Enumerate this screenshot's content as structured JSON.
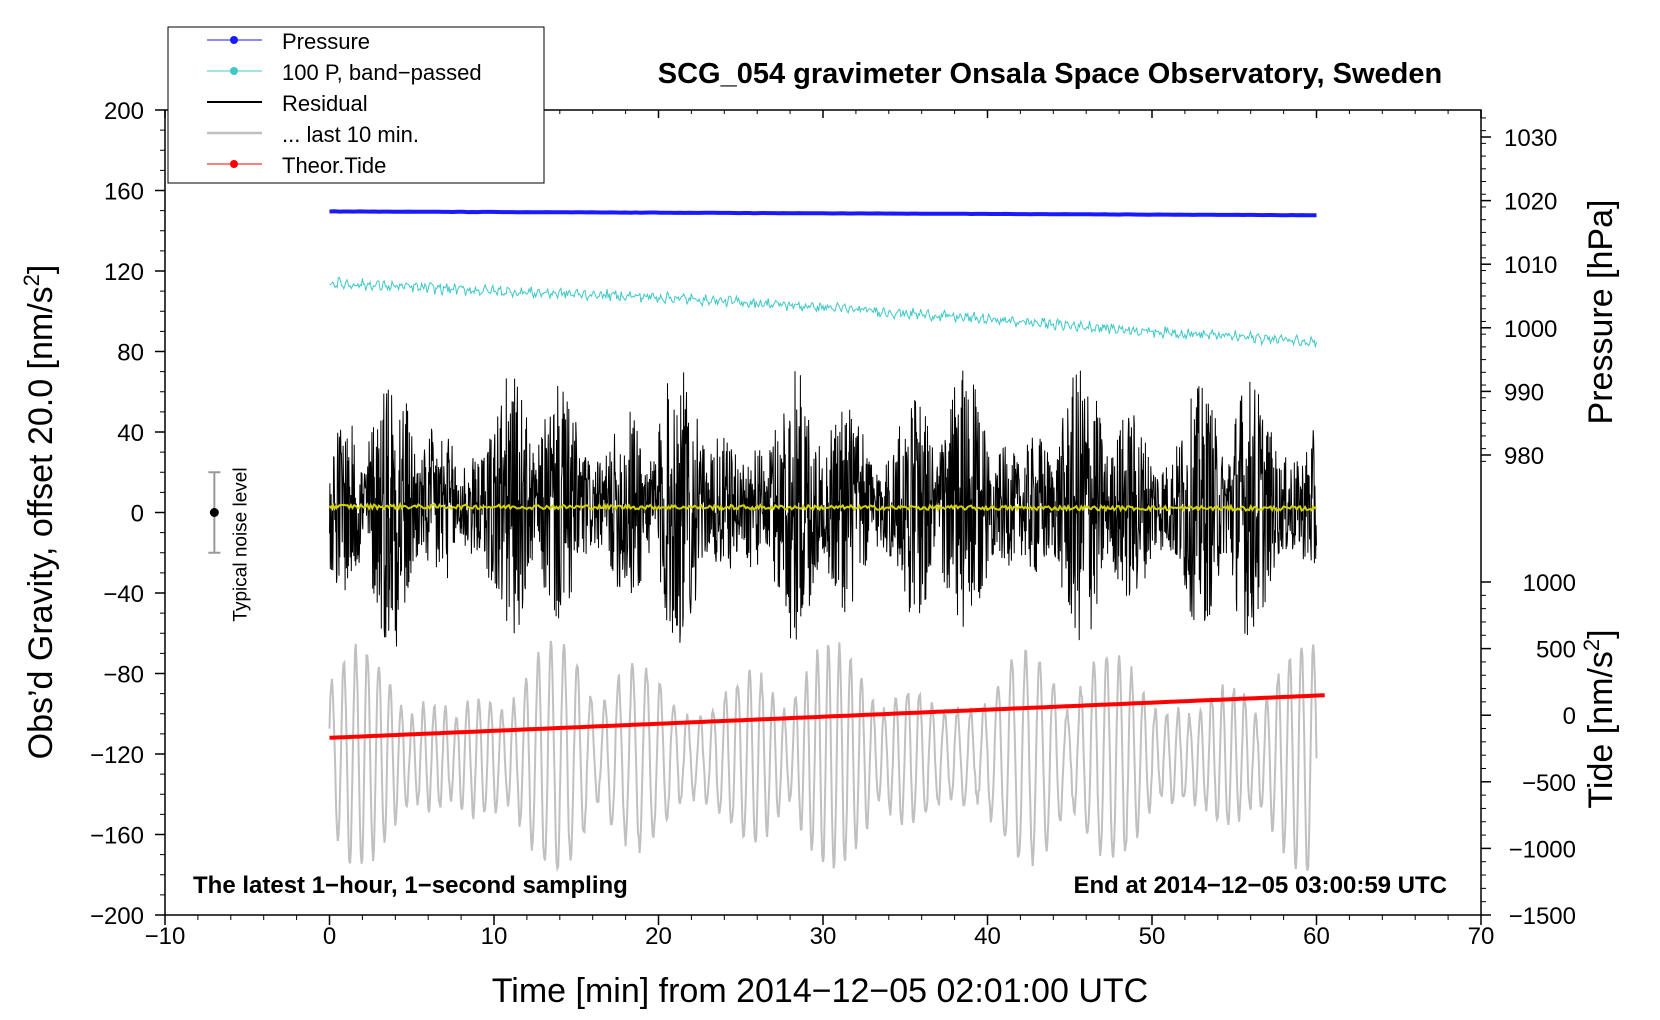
{
  "chart_data": {
    "type": "line",
    "title": "SCG_054 gravimeter Onsala Space Observatory, Sweden",
    "xlabel": "Time [min] from 2014−12−05 02:01:00 UTC",
    "ylabel": "Obs’d Gravity, offset 20.0 [nm/s²]",
    "ylabel_main": "Obs’d Gravity, offset 20.0 [nm/s",
    "ylabel_exp": "2",
    "ylabel_end": "]",
    "xlim": [
      -10,
      70
    ],
    "ylim": [
      -200,
      200
    ],
    "x_ticks": [
      "−10",
      "0",
      "10",
      "20",
      "30",
      "40",
      "50",
      "60",
      "70"
    ],
    "y_ticks": [
      "200",
      "160",
      "120",
      "80",
      "40",
      "0",
      "−40",
      "−80",
      "−120",
      "−160",
      "−200"
    ],
    "pressure_axis": {
      "label": "Pressure [hPa]",
      "range": [
        960,
        1035
      ],
      "ticks": [
        "1030",
        "1020",
        "1010",
        "1000",
        "990",
        "980"
      ]
    },
    "tide_axis": {
      "label": "Tide [nm/s²]",
      "label_main": "Tide [nm/s",
      "label_exp": "2",
      "label_end": "]",
      "range": [
        -1500,
        1000
      ],
      "ticks": [
        "1000",
        "500",
        "0",
        "−500",
        "−1000",
        "−1500"
      ]
    },
    "legend": {
      "location": "top-left",
      "entries": [
        "Pressure",
        "100 P, band−passed",
        "Residual",
        "... last 10 min.",
        "Theor.Tide"
      ]
    },
    "series": [
      {
        "name": "Pressure",
        "color": "#1a1aff",
        "axis": "pressure",
        "x": [
          0,
          60
        ],
        "values": [
          1018.3,
          1017.7
        ]
      },
      {
        "name": "100 P, band−passed",
        "color": "#40c8c8",
        "axis": "gravity",
        "x": [
          0,
          10,
          20,
          30,
          40,
          50,
          60
        ],
        "values": [
          114,
          110,
          107,
          102,
          96,
          90,
          85
        ]
      },
      {
        "name": "Residual",
        "color": "#000000",
        "axis": "gravity",
        "x": [
          0,
          60
        ],
        "values_range": [
          -70,
          80
        ]
      },
      {
        "name": "Residual (smoothed)",
        "color": "#d2d200",
        "axis": "gravity",
        "x": [
          0,
          60
        ],
        "values": [
          3,
          2
        ]
      },
      {
        "name": "... last 10 min.",
        "color": "#c0c0c0",
        "axis": "gravity",
        "x": [
          0,
          60
        ],
        "values_range": [
          -182,
          -61
        ]
      },
      {
        "name": "Theor.Tide",
        "color": "#ff0000",
        "axis": "tide",
        "x": [
          0,
          60.5
        ],
        "values": [
          -170,
          150
        ]
      }
    ],
    "noise_indicator": {
      "label": "Typical noise level",
      "x": -7,
      "center": 0,
      "half_range": 20
    },
    "annotations": {
      "left": "The latest 1−hour, 1−second sampling",
      "right": "End at 2014−12−05 03:00:59 UTC"
    }
  },
  "colors": {
    "pressure": "#1a1aff",
    "band_passed": "#40c8c8",
    "residual": "#000000",
    "residual_smoothed": "#d2d200",
    "last_10_min": "#c0c0c0",
    "theor_tide": "#ff0000"
  }
}
